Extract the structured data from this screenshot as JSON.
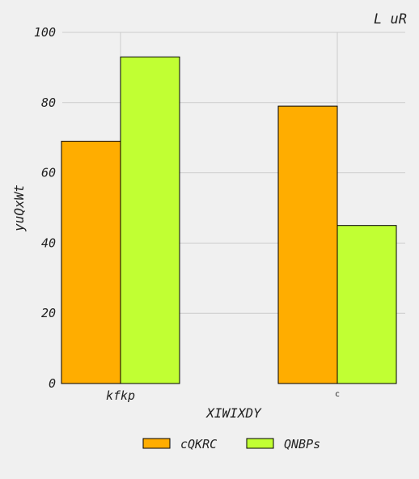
{
  "chart_data": {
    "type": "bar",
    "title": "L uR",
    "xlabel": "XIWIXDY",
    "ylabel": "yuQxWt",
    "categories": [
      "kfkp",
      "c"
    ],
    "series": [
      {
        "name": "cQKRC",
        "color": "#ffad00",
        "values": [
          69,
          79
        ]
      },
      {
        "name": "QNBPs",
        "color": "#c1ff33",
        "values": [
          93,
          45
        ]
      }
    ],
    "ylim": [
      0,
      100
    ],
    "yticks": [
      0,
      20,
      40,
      60,
      80,
      100
    ],
    "grid": true,
    "legend_position": "bottom-center"
  }
}
